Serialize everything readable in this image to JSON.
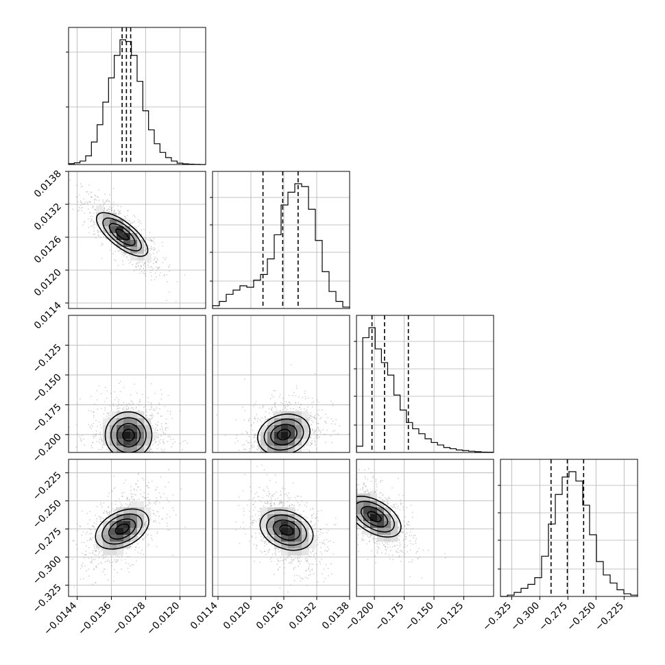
{
  "chart_data": {
    "type": "corner",
    "grid": true,
    "parameters": [
      {
        "range": [
          -0.0146,
          -0.0114
        ],
        "ticks": [
          -0.0144,
          -0.0136,
          -0.0128,
          -0.012
        ],
        "tick_labels": [
          "−0.0144",
          "−0.0136",
          "−0.0128",
          "−0.0120"
        ],
        "quantiles": [
          -0.01335,
          -0.01325,
          -0.01315
        ],
        "histogram": [
          0.5,
          1,
          2,
          5,
          13,
          23,
          36,
          50,
          63,
          72,
          71,
          63,
          48,
          31,
          20,
          12,
          7,
          4,
          2,
          0.8,
          0.4,
          0.2,
          0.1,
          0
        ]
      },
      {
        "range": [
          0.0113,
          0.0138
        ],
        "ticks": [
          0.0114,
          0.012,
          0.0126,
          0.0132,
          0.0138
        ],
        "tick_labels": [
          "0.0114",
          "0.0120",
          "0.0126",
          "0.0132",
          "0.0138"
        ],
        "quantiles": [
          0.01222,
          0.01258,
          0.01286
        ],
        "histogram": [
          2,
          5,
          10,
          13,
          16,
          15,
          20,
          24,
          35,
          52,
          73,
          82,
          88,
          86,
          70,
          48,
          26,
          12,
          5,
          1
        ]
      },
      {
        "range": [
          -0.215,
          -0.1
        ],
        "ticks": [
          -0.2,
          -0.175,
          -0.15,
          -0.125
        ],
        "tick_labels": [
          "−0.200",
          "−0.175",
          "−0.150",
          "−0.125"
        ],
        "quantiles": [
          -0.202,
          -0.1915,
          -0.1715
        ],
        "histogram": [
          5,
          92,
          100,
          83,
          72,
          62,
          46,
          34,
          24,
          19,
          15,
          11,
          8,
          6,
          4,
          3,
          2,
          1.5,
          1,
          0.6,
          0.3,
          0.2
        ]
      },
      {
        "range": [
          -0.335,
          -0.213
        ],
        "ticks": [
          -0.325,
          -0.3,
          -0.275,
          -0.25,
          -0.225
        ],
        "tick_labels": [
          "−0.325",
          "−0.300",
          "−0.275",
          "−0.250",
          "−0.225"
        ],
        "quantiles": [
          -0.29,
          -0.2755,
          -0.261
        ],
        "histogram": [
          0,
          1,
          3,
          6,
          9,
          14,
          30,
          54,
          76,
          89,
          93,
          86,
          68,
          46,
          26,
          16,
          10,
          5,
          2,
          1
        ]
      }
    ],
    "joint": [
      {
        "pair": [
          0,
          1
        ],
        "density_peaks": [
          [
            -0.01335,
            0.01265
          ],
          [
            -0.01325,
            0.01255
          ]
        ],
        "correlation": -0.8
      },
      {
        "pair": [
          0,
          2
        ],
        "density_peaks": [
          [
            -0.0132,
            -0.2005
          ]
        ],
        "correlation": 0.0
      },
      {
        "pair": [
          1,
          2
        ],
        "density_peaks": [
          [
            0.0126,
            -0.2
          ],
          [
            0.0124,
            -0.2005
          ]
        ],
        "correlation": 0.3
      },
      {
        "pair": [
          0,
          3
        ],
        "density_peaks": [
          [
            -0.01335,
            -0.275
          ]
        ],
        "correlation": 0.5
      },
      {
        "pair": [
          1,
          3
        ],
        "density_peaks": [
          [
            0.01265,
            -0.276
          ]
        ],
        "correlation": -0.4
      },
      {
        "pair": [
          2,
          3
        ],
        "density_peaks": [
          [
            -0.2,
            -0.264
          ]
        ],
        "correlation": -0.6
      }
    ],
    "hist_yticks": [
      [
        0.42,
        0.82
      ],
      [
        0.2,
        0.41,
        0.61,
        0.81
      ],
      [
        0.2,
        0.41,
        0.61,
        0.81
      ],
      [
        0.2,
        0.41,
        0.61,
        0.81
      ]
    ],
    "colors": {
      "frame": "#000000",
      "grid": "#b0b0b0",
      "scatter": "#9a9a9a",
      "density_max": "#000000"
    }
  }
}
